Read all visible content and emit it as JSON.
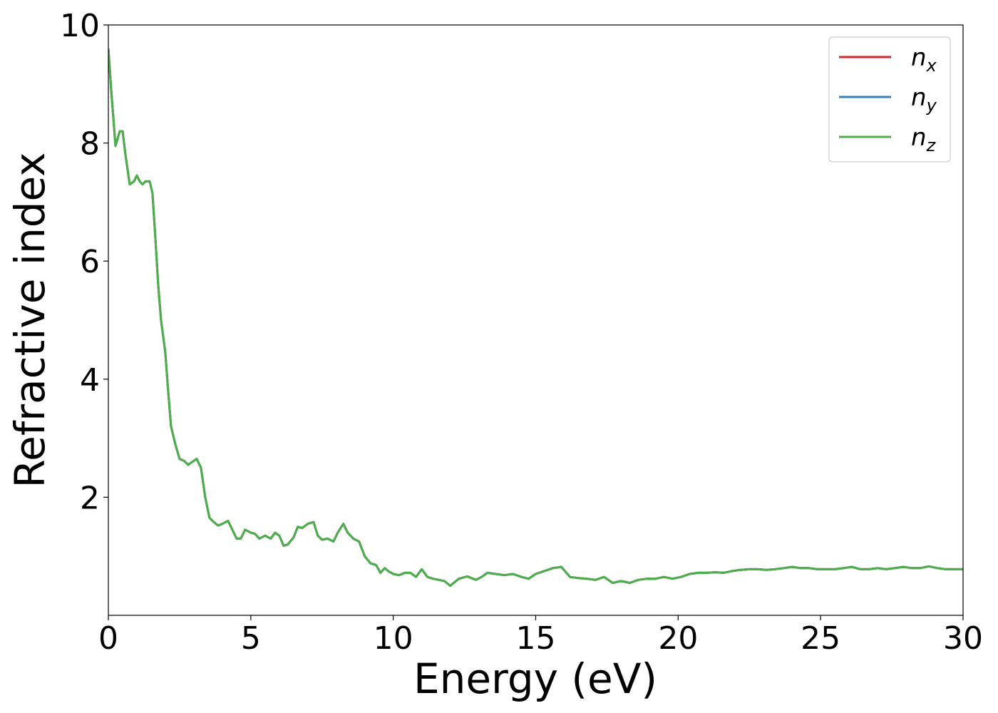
{
  "chart_data": {
    "type": "line",
    "xlabel": "Energy (eV)",
    "ylabel": "Refractive index",
    "xlim": [
      0,
      30
    ],
    "ylim": [
      0,
      10
    ],
    "x_ticks": [
      "0",
      "5",
      "10",
      "15",
      "20",
      "25",
      "30"
    ],
    "y_ticks": [
      "2",
      "4",
      "6",
      "8",
      "10"
    ],
    "grid": false,
    "legend_position": "top-right",
    "series": [
      {
        "name": "n",
        "subscript": "x",
        "color": "#d62728",
        "x": [
          0,
          0.1,
          0.25,
          0.4,
          0.5,
          0.6,
          0.75,
          0.9,
          1.0,
          1.1,
          1.2,
          1.3,
          1.45,
          1.55,
          1.65,
          1.75,
          1.85,
          2.0,
          2.1,
          2.2,
          2.35,
          2.5,
          2.65,
          2.8,
          2.95,
          3.1,
          3.25,
          3.4,
          3.55,
          3.7,
          3.85,
          4.0,
          4.2,
          4.35,
          4.5,
          4.65,
          4.8,
          5.0,
          5.15,
          5.3,
          5.5,
          5.7,
          5.85,
          6.0,
          6.15,
          6.3,
          6.5,
          6.65,
          6.8,
          7.0,
          7.2,
          7.35,
          7.5,
          7.7,
          7.9,
          8.05,
          8.25,
          8.4,
          8.6,
          8.8,
          9.0,
          9.2,
          9.4,
          9.55,
          9.7,
          9.85,
          10.0,
          10.2,
          10.4,
          10.6,
          10.8,
          11.0,
          11.2,
          11.4,
          11.6,
          11.8,
          12.0,
          12.3,
          12.6,
          12.9,
          13.1,
          13.3,
          13.6,
          13.9,
          14.2,
          14.5,
          14.75,
          15.0,
          15.3,
          15.6,
          15.9,
          16.2,
          16.5,
          16.8,
          17.1,
          17.4,
          17.7,
          18.0,
          18.3,
          18.6,
          18.9,
          19.2,
          19.5,
          19.8,
          20.1,
          20.4,
          20.7,
          21.0,
          21.3,
          21.6,
          21.9,
          22.2,
          22.5,
          22.8,
          23.1,
          23.4,
          23.7,
          24.0,
          24.3,
          24.6,
          24.9,
          25.2,
          25.5,
          25.8,
          26.1,
          26.4,
          26.7,
          27.0,
          27.3,
          27.6,
          27.9,
          28.2,
          28.5,
          28.8,
          29.1,
          29.4,
          29.7,
          30.0
        ],
        "y": [
          9.6,
          8.9,
          7.95,
          8.2,
          8.2,
          7.8,
          7.3,
          7.35,
          7.45,
          7.35,
          7.3,
          7.35,
          7.35,
          7.15,
          6.4,
          5.6,
          5.0,
          4.45,
          3.8,
          3.2,
          2.9,
          2.65,
          2.62,
          2.55,
          2.6,
          2.65,
          2.5,
          2.0,
          1.65,
          1.58,
          1.52,
          1.55,
          1.6,
          1.45,
          1.3,
          1.3,
          1.45,
          1.4,
          1.38,
          1.3,
          1.35,
          1.3,
          1.4,
          1.35,
          1.18,
          1.2,
          1.32,
          1.5,
          1.48,
          1.55,
          1.58,
          1.35,
          1.28,
          1.3,
          1.25,
          1.4,
          1.55,
          1.4,
          1.3,
          1.25,
          1.0,
          0.88,
          0.85,
          0.72,
          0.8,
          0.74,
          0.7,
          0.68,
          0.72,
          0.72,
          0.65,
          0.78,
          0.65,
          0.62,
          0.6,
          0.58,
          0.5,
          0.62,
          0.66,
          0.6,
          0.65,
          0.72,
          0.7,
          0.68,
          0.7,
          0.65,
          0.62,
          0.7,
          0.75,
          0.8,
          0.82,
          0.65,
          0.63,
          0.62,
          0.6,
          0.65,
          0.55,
          0.58,
          0.55,
          0.6,
          0.62,
          0.62,
          0.65,
          0.62,
          0.65,
          0.7,
          0.72,
          0.72,
          0.73,
          0.72,
          0.75,
          0.77,
          0.78,
          0.78,
          0.77,
          0.78,
          0.8,
          0.82,
          0.8,
          0.8,
          0.78,
          0.78,
          0.78,
          0.8,
          0.82,
          0.78,
          0.78,
          0.8,
          0.78,
          0.8,
          0.82,
          0.8,
          0.8,
          0.83,
          0.8,
          0.78,
          0.78,
          0.78
        ]
      },
      {
        "name": "n",
        "subscript": "y",
        "color": "#377eb8",
        "x": [
          0,
          0.1,
          0.25,
          0.4,
          0.5,
          0.6,
          0.75,
          0.9,
          1.0,
          1.1,
          1.2,
          1.3,
          1.45,
          1.55,
          1.65,
          1.75,
          1.85,
          2.0,
          2.1,
          2.2,
          2.35,
          2.5,
          2.65,
          2.8,
          2.95,
          3.1,
          3.25,
          3.4,
          3.55,
          3.7,
          3.85,
          4.0,
          4.2,
          4.35,
          4.5,
          4.65,
          4.8,
          5.0,
          5.15,
          5.3,
          5.5,
          5.7,
          5.85,
          6.0,
          6.15,
          6.3,
          6.5,
          6.65,
          6.8,
          7.0,
          7.2,
          7.35,
          7.5,
          7.7,
          7.9,
          8.05,
          8.25,
          8.4,
          8.6,
          8.8,
          9.0,
          9.2,
          9.4,
          9.55,
          9.7,
          9.85,
          10.0,
          10.2,
          10.4,
          10.6,
          10.8,
          11.0,
          11.2,
          11.4,
          11.6,
          11.8,
          12.0,
          12.3,
          12.6,
          12.9,
          13.1,
          13.3,
          13.6,
          13.9,
          14.2,
          14.5,
          14.75,
          15.0,
          15.3,
          15.6,
          15.9,
          16.2,
          16.5,
          16.8,
          17.1,
          17.4,
          17.7,
          18.0,
          18.3,
          18.6,
          18.9,
          19.2,
          19.5,
          19.8,
          20.1,
          20.4,
          20.7,
          21.0,
          21.3,
          21.6,
          21.9,
          22.2,
          22.5,
          22.8,
          23.1,
          23.4,
          23.7,
          24.0,
          24.3,
          24.6,
          24.9,
          25.2,
          25.5,
          25.8,
          26.1,
          26.4,
          26.7,
          27.0,
          27.3,
          27.6,
          27.9,
          28.2,
          28.5,
          28.8,
          29.1,
          29.4,
          29.7,
          30.0
        ],
        "y": [
          9.6,
          8.9,
          7.95,
          8.2,
          8.2,
          7.8,
          7.3,
          7.35,
          7.45,
          7.35,
          7.3,
          7.35,
          7.35,
          7.15,
          6.4,
          5.6,
          5.0,
          4.45,
          3.8,
          3.2,
          2.9,
          2.65,
          2.62,
          2.55,
          2.6,
          2.65,
          2.5,
          2.0,
          1.65,
          1.58,
          1.52,
          1.55,
          1.6,
          1.45,
          1.3,
          1.3,
          1.45,
          1.4,
          1.38,
          1.3,
          1.35,
          1.3,
          1.4,
          1.35,
          1.18,
          1.2,
          1.32,
          1.5,
          1.48,
          1.55,
          1.58,
          1.35,
          1.28,
          1.3,
          1.25,
          1.4,
          1.55,
          1.4,
          1.3,
          1.25,
          1.0,
          0.88,
          0.85,
          0.72,
          0.8,
          0.74,
          0.7,
          0.68,
          0.72,
          0.72,
          0.65,
          0.78,
          0.65,
          0.62,
          0.6,
          0.58,
          0.5,
          0.62,
          0.66,
          0.6,
          0.65,
          0.72,
          0.7,
          0.68,
          0.7,
          0.65,
          0.62,
          0.7,
          0.75,
          0.8,
          0.82,
          0.65,
          0.63,
          0.62,
          0.6,
          0.65,
          0.55,
          0.58,
          0.55,
          0.6,
          0.62,
          0.62,
          0.65,
          0.62,
          0.65,
          0.7,
          0.72,
          0.72,
          0.73,
          0.72,
          0.75,
          0.77,
          0.78,
          0.78,
          0.77,
          0.78,
          0.8,
          0.82,
          0.8,
          0.8,
          0.78,
          0.78,
          0.78,
          0.8,
          0.82,
          0.78,
          0.78,
          0.8,
          0.78,
          0.8,
          0.82,
          0.8,
          0.8,
          0.83,
          0.8,
          0.78,
          0.78,
          0.78
        ]
      },
      {
        "name": "n",
        "subscript": "z",
        "color": "#4daf4a",
        "x": [
          0,
          0.1,
          0.25,
          0.4,
          0.5,
          0.6,
          0.75,
          0.9,
          1.0,
          1.1,
          1.2,
          1.3,
          1.45,
          1.55,
          1.65,
          1.75,
          1.85,
          2.0,
          2.1,
          2.2,
          2.35,
          2.5,
          2.65,
          2.8,
          2.95,
          3.1,
          3.25,
          3.4,
          3.55,
          3.7,
          3.85,
          4.0,
          4.2,
          4.35,
          4.5,
          4.65,
          4.8,
          5.0,
          5.15,
          5.3,
          5.5,
          5.7,
          5.85,
          6.0,
          6.15,
          6.3,
          6.5,
          6.65,
          6.8,
          7.0,
          7.2,
          7.35,
          7.5,
          7.7,
          7.9,
          8.05,
          8.25,
          8.4,
          8.6,
          8.8,
          9.0,
          9.2,
          9.4,
          9.55,
          9.7,
          9.85,
          10.0,
          10.2,
          10.4,
          10.6,
          10.8,
          11.0,
          11.2,
          11.4,
          11.6,
          11.8,
          12.0,
          12.3,
          12.6,
          12.9,
          13.1,
          13.3,
          13.6,
          13.9,
          14.2,
          14.5,
          14.75,
          15.0,
          15.3,
          15.6,
          15.9,
          16.2,
          16.5,
          16.8,
          17.1,
          17.4,
          17.7,
          18.0,
          18.3,
          18.6,
          18.9,
          19.2,
          19.5,
          19.8,
          20.1,
          20.4,
          20.7,
          21.0,
          21.3,
          21.6,
          21.9,
          22.2,
          22.5,
          22.8,
          23.1,
          23.4,
          23.7,
          24.0,
          24.3,
          24.6,
          24.9,
          25.2,
          25.5,
          25.8,
          26.1,
          26.4,
          26.7,
          27.0,
          27.3,
          27.6,
          27.9,
          28.2,
          28.5,
          28.8,
          29.1,
          29.4,
          29.7,
          30.0
        ],
        "y": [
          9.6,
          8.9,
          7.95,
          8.2,
          8.2,
          7.8,
          7.3,
          7.35,
          7.45,
          7.35,
          7.3,
          7.35,
          7.35,
          7.15,
          6.4,
          5.6,
          5.0,
          4.45,
          3.8,
          3.2,
          2.9,
          2.65,
          2.62,
          2.55,
          2.6,
          2.65,
          2.5,
          2.0,
          1.65,
          1.58,
          1.52,
          1.55,
          1.6,
          1.45,
          1.3,
          1.3,
          1.45,
          1.4,
          1.38,
          1.3,
          1.35,
          1.3,
          1.4,
          1.35,
          1.18,
          1.2,
          1.32,
          1.5,
          1.48,
          1.55,
          1.58,
          1.35,
          1.28,
          1.3,
          1.25,
          1.4,
          1.55,
          1.4,
          1.3,
          1.25,
          1.0,
          0.88,
          0.85,
          0.72,
          0.8,
          0.74,
          0.7,
          0.68,
          0.72,
          0.72,
          0.65,
          0.78,
          0.65,
          0.62,
          0.6,
          0.58,
          0.5,
          0.62,
          0.66,
          0.6,
          0.65,
          0.72,
          0.7,
          0.68,
          0.7,
          0.65,
          0.62,
          0.7,
          0.75,
          0.8,
          0.82,
          0.65,
          0.63,
          0.62,
          0.6,
          0.65,
          0.55,
          0.58,
          0.55,
          0.6,
          0.62,
          0.62,
          0.65,
          0.62,
          0.65,
          0.7,
          0.72,
          0.72,
          0.73,
          0.72,
          0.75,
          0.77,
          0.78,
          0.78,
          0.77,
          0.78,
          0.8,
          0.82,
          0.8,
          0.8,
          0.78,
          0.78,
          0.78,
          0.8,
          0.82,
          0.78,
          0.78,
          0.8,
          0.78,
          0.8,
          0.82,
          0.8,
          0.8,
          0.83,
          0.8,
          0.78,
          0.78,
          0.78
        ]
      }
    ]
  }
}
